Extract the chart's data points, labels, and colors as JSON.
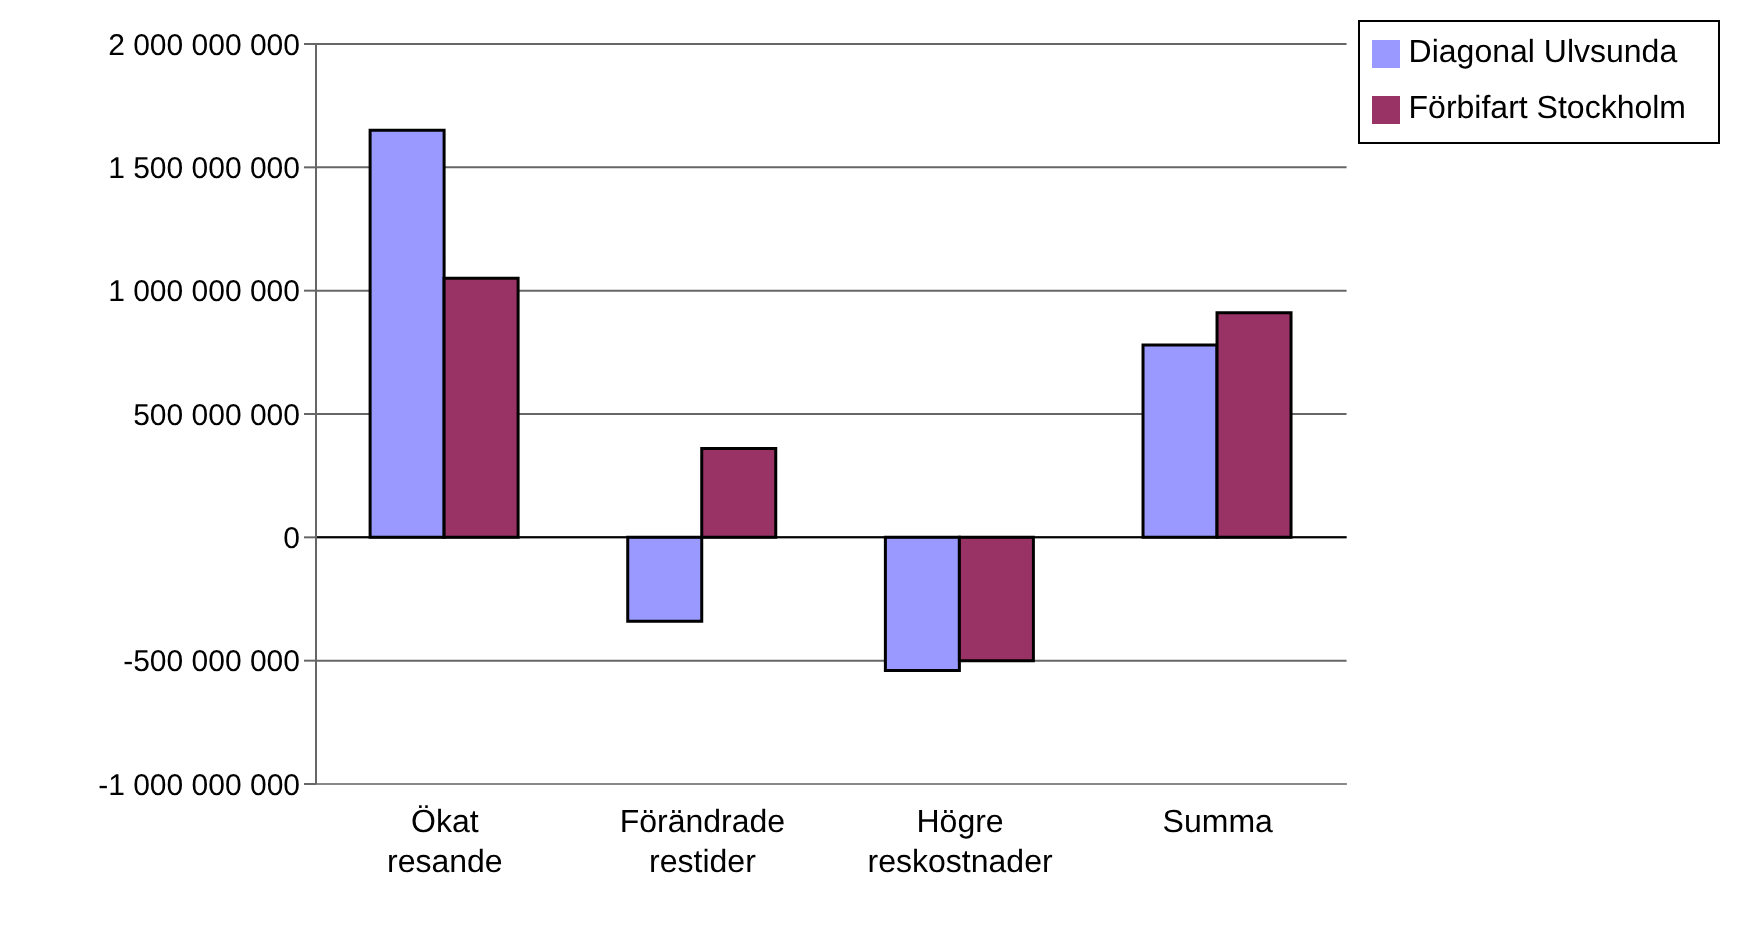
{
  "chart_data": {
    "type": "bar",
    "categories": [
      "Ökat resande",
      "Förändrade restider",
      "Högre reskostnader",
      "Summa"
    ],
    "series": [
      {
        "name": "Diagonal Ulvsunda",
        "color": "#9999ff",
        "values": [
          1650000000,
          -340000000,
          -540000000,
          780000000
        ]
      },
      {
        "name": "Förbifart Stockholm",
        "color": "#993366",
        "values": [
          1050000000,
          360000000,
          -500000000,
          910000000
        ]
      }
    ],
    "ylim": [
      -1000000000,
      2000000000
    ],
    "yticks": [
      -1000000000,
      -500000000,
      0,
      500000000,
      1000000000,
      1500000000,
      2000000000
    ],
    "grid": "y",
    "legend": "top right"
  }
}
